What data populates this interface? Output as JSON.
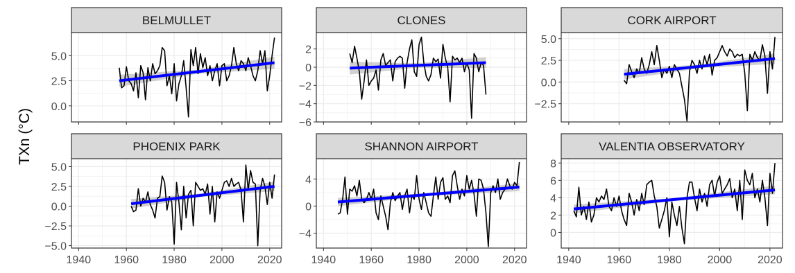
{
  "chart_data": {
    "type": "line",
    "ylabel": "TXn (°C)",
    "xlabel": "",
    "x_ticks": [
      1940,
      1960,
      1980,
      2000,
      2020
    ],
    "xlim": [
      1937,
      2025
    ],
    "grid": true,
    "legend": "none",
    "colors": {
      "series": "#000000",
      "trend": "#0000ff",
      "band": "#b3b3b3",
      "strip": "#d9d9d9",
      "grid": "#ebebeb",
      "panel_border": "#333333"
    },
    "panels": [
      {
        "title": "BELMULLET",
        "ylim": [
          -1.6,
          7.3
        ],
        "y_ticks": [
          0.0,
          2.5,
          5.0
        ],
        "y_tick_labels": [
          "0.0",
          "2.5",
          "5.0"
        ],
        "trend": {
          "x": [
            1957,
            2022
          ],
          "y": [
            2.5,
            4.3
          ]
        },
        "band": [
          0.6,
          0.6
        ],
        "x": [
          1957,
          1958,
          1959,
          1960,
          1961,
          1962,
          1963,
          1964,
          1965,
          1966,
          1967,
          1968,
          1969,
          1970,
          1971,
          1972,
          1973,
          1974,
          1975,
          1976,
          1977,
          1978,
          1979,
          1980,
          1981,
          1982,
          1983,
          1984,
          1985,
          1986,
          1987,
          1988,
          1989,
          1990,
          1991,
          1992,
          1993,
          1994,
          1995,
          1996,
          1997,
          1998,
          1999,
          2000,
          2001,
          2002,
          2003,
          2004,
          2005,
          2006,
          2007,
          2008,
          2009,
          2010,
          2011,
          2012,
          2013,
          2014,
          2015,
          2016,
          2017,
          2018,
          2019,
          2020,
          2021,
          2022
        ],
        "y": [
          3.8,
          1.8,
          2.0,
          3.9,
          2.5,
          2.2,
          1.5,
          3.3,
          0.8,
          4.0,
          3.3,
          0.6,
          3.8,
          2.5,
          4.2,
          3.2,
          3.5,
          4.0,
          5.8,
          5.5,
          2.0,
          3.0,
          1.2,
          4.2,
          0.5,
          2.2,
          3.0,
          4.5,
          1.8,
          -1.1,
          5.6,
          4.0,
          5.8,
          3.2,
          5.2,
          3.8,
          4.8,
          3.0,
          4.0,
          2.5,
          3.5,
          4.2,
          2.0,
          4.0,
          4.2,
          2.5,
          3.0,
          4.0,
          5.8,
          4.2,
          3.5,
          4.5,
          4.2,
          3.5,
          4.8,
          4.0,
          3.0,
          2.5,
          3.5,
          5.5,
          4.2,
          5.5,
          1.5,
          3.0,
          5.0,
          6.8
        ]
      },
      {
        "title": "CLONES",
        "ylim": [
          -6,
          3.8
        ],
        "y_ticks": [
          -6,
          -4,
          -2,
          0,
          2
        ],
        "y_tick_labels": [
          "−6",
          "−4",
          "−2",
          "0",
          "2"
        ],
        "trend": {
          "x": [
            1951,
            2008
          ],
          "y": [
            -0.1,
            0.5
          ]
        },
        "band": [
          0.7,
          0.6
        ],
        "x": [
          1951,
          1952,
          1953,
          1954,
          1955,
          1956,
          1957,
          1958,
          1959,
          1960,
          1961,
          1962,
          1963,
          1964,
          1965,
          1966,
          1967,
          1968,
          1969,
          1970,
          1971,
          1972,
          1973,
          1974,
          1975,
          1976,
          1977,
          1978,
          1979,
          1980,
          1981,
          1982,
          1983,
          1984,
          1985,
          1986,
          1987,
          1988,
          1989,
          1990,
          1991,
          1992,
          1993,
          1994,
          1995,
          1996,
          1997,
          1998,
          1999,
          2000,
          2001,
          2002,
          2003,
          2004,
          2005,
          2006,
          2007,
          2008
        ],
        "y": [
          1.5,
          0.5,
          2.3,
          1.0,
          -0.5,
          -3.5,
          -1.5,
          0.8,
          -2.0,
          -1.5,
          -1.2,
          -0.3,
          -2.5,
          0.8,
          1.5,
          0.2,
          0.5,
          0.8,
          -1.5,
          0.6,
          1.0,
          1.2,
          1.0,
          -2.3,
          0.5,
          2.0,
          3.0,
          -0.5,
          -1.0,
          2.5,
          3.3,
          0.5,
          -1.0,
          -1.5,
          -0.8,
          1.0,
          0.6,
          0.9,
          -1.2,
          2.5,
          1.0,
          0.0,
          -3.8,
          1.2,
          0.8,
          1.0,
          0.5,
          1.0,
          -0.5,
          0.5,
          -0.3,
          -5.6,
          1.5,
          1.0,
          -0.5,
          0.5,
          0.2,
          -3.0
        ]
      },
      {
        "title": "CORK AIRPORT",
        "ylim": [
          -4.6,
          5.7
        ],
        "y_ticks": [
          -2.5,
          0.0,
          2.5,
          5.0
        ],
        "y_tick_labels": [
          "−2.5",
          "0.0",
          "2.5",
          "5.0"
        ],
        "trend": {
          "x": [
            1962,
            2022
          ],
          "y": [
            0.9,
            2.7
          ]
        },
        "band": [
          0.6,
          0.6
        ],
        "x": [
          1962,
          1963,
          1964,
          1965,
          1966,
          1967,
          1968,
          1969,
          1970,
          1971,
          1972,
          1973,
          1974,
          1975,
          1976,
          1977,
          1978,
          1979,
          1980,
          1981,
          1982,
          1983,
          1984,
          1985,
          1986,
          1987,
          1988,
          1989,
          1990,
          1991,
          1992,
          1993,
          1994,
          1995,
          1996,
          1997,
          1998,
          1999,
          2000,
          2001,
          2002,
          2003,
          2004,
          2005,
          2006,
          2007,
          2008,
          2009,
          2010,
          2011,
          2012,
          2013,
          2014,
          2015,
          2016,
          2017,
          2018,
          2019,
          2020,
          2021,
          2022
        ],
        "y": [
          0.2,
          -0.2,
          2.0,
          1.2,
          0.5,
          1.5,
          1.0,
          2.8,
          1.5,
          1.0,
          2.0,
          3.5,
          2.0,
          4.2,
          2.5,
          0.5,
          1.5,
          1.0,
          1.8,
          0.5,
          2.0,
          1.5,
          1.0,
          -0.5,
          -2.0,
          -4.5,
          1.2,
          2.5,
          2.0,
          1.0,
          2.5,
          1.5,
          3.0,
          2.0,
          3.2,
          0.8,
          2.5,
          2.8,
          3.5,
          4.2,
          3.5,
          3.0,
          3.8,
          3.5,
          2.8,
          3.2,
          3.0,
          3.2,
          1.0,
          -3.3,
          3.2,
          2.5,
          3.5,
          2.8,
          2.5,
          4.3,
          3.0,
          -1.3,
          3.5,
          1.5,
          5.2
        ]
      },
      {
        "title": "PHOENIX PARK",
        "ylim": [
          -5.3,
          6.0
        ],
        "y_ticks": [
          -5.0,
          -2.5,
          0.0,
          2.5,
          5.0
        ],
        "y_tick_labels": [
          "−5.0",
          "−2.5",
          "0.0",
          "2.5",
          "5.0"
        ],
        "trend": {
          "x": [
            1962,
            2022
          ],
          "y": [
            0.3,
            2.5
          ]
        },
        "band": [
          0.6,
          0.6
        ],
        "x": [
          1962,
          1963,
          1964,
          1965,
          1966,
          1967,
          1968,
          1969,
          1970,
          1971,
          1972,
          1973,
          1974,
          1975,
          1976,
          1977,
          1978,
          1979,
          1980,
          1981,
          1982,
          1983,
          1984,
          1985,
          1986,
          1987,
          1988,
          1989,
          1990,
          1991,
          1992,
          1993,
          1994,
          1995,
          1996,
          1997,
          1998,
          1999,
          2000,
          2001,
          2002,
          2003,
          2004,
          2005,
          2006,
          2007,
          2008,
          2009,
          2010,
          2011,
          2012,
          2013,
          2014,
          2015,
          2016,
          2017,
          2018,
          2019,
          2020,
          2021,
          2022
        ],
        "y": [
          0.0,
          -0.7,
          -0.5,
          2.2,
          0.0,
          1.0,
          0.5,
          1.8,
          0.2,
          -0.5,
          -1.5,
          1.0,
          1.2,
          3.8,
          3.0,
          -0.5,
          1.2,
          0.5,
          -4.8,
          3.0,
          0.5,
          -3.0,
          2.5,
          -1.5,
          1.5,
          2.0,
          -2.5,
          3.0,
          2.5,
          2.0,
          2.2,
          1.5,
          2.8,
          -1.0,
          2.5,
          -2.0,
          1.8,
          1.0,
          2.0,
          3.0,
          3.2,
          2.5,
          3.5,
          2.5,
          2.8,
          3.0,
          2.0,
          -2.0,
          5.2,
          2.0,
          4.5,
          3.0,
          2.8,
          -5.0,
          2.0,
          3.5,
          2.5,
          0.2,
          3.0,
          1.0,
          4.0
        ]
      },
      {
        "title": "SHANNON AIRPORT",
        "ylim": [
          -6.2,
          7.0
        ],
        "y_ticks": [
          -4,
          0,
          4
        ],
        "y_tick_labels": [
          "−4",
          "0",
          "4"
        ],
        "trend": {
          "x": [
            1946,
            2022
          ],
          "y": [
            0.6,
            2.8
          ]
        },
        "band": [
          0.6,
          0.6
        ],
        "x": [
          1946,
          1947,
          1948,
          1949,
          1950,
          1951,
          1952,
          1953,
          1954,
          1955,
          1956,
          1957,
          1958,
          1959,
          1960,
          1961,
          1962,
          1963,
          1964,
          1965,
          1966,
          1967,
          1968,
          1969,
          1970,
          1971,
          1972,
          1973,
          1974,
          1975,
          1976,
          1977,
          1978,
          1979,
          1980,
          1981,
          1982,
          1983,
          1984,
          1985,
          1986,
          1987,
          1988,
          1989,
          1990,
          1991,
          1992,
          1993,
          1994,
          1995,
          1996,
          1997,
          1998,
          1999,
          2000,
          2001,
          2002,
          2003,
          2004,
          2005,
          2006,
          2007,
          2008,
          2009,
          2010,
          2011,
          2012,
          2013,
          2014,
          2015,
          2016,
          2017,
          2018,
          2019,
          2020,
          2021,
          2022
        ],
        "y": [
          -1.2,
          -1.0,
          1.0,
          4.3,
          -1.2,
          2.5,
          2.2,
          3.0,
          1.5,
          3.8,
          1.0,
          0.5,
          1.0,
          2.0,
          1.0,
          2.5,
          -1.0,
          -2.0,
          1.5,
          0.0,
          -1.5,
          -3.5,
          0.5,
          2.0,
          0.8,
          1.5,
          2.0,
          -0.5,
          1.5,
          2.5,
          -1.0,
          1.5,
          1.0,
          4.5,
          1.0,
          -0.5,
          2.0,
          0.5,
          -1.0,
          -1.5,
          1.5,
          4.3,
          1.0,
          3.5,
          4.2,
          1.0,
          1.5,
          0.5,
          4.5,
          5.2,
          3.0,
          1.0,
          2.5,
          1.5,
          4.5,
          2.5,
          3.8,
          1.8,
          -1.5,
          4.0,
          3.8,
          2.5,
          -1.0,
          -6.0,
          2.0,
          3.0,
          2.0,
          4.0,
          1.0,
          2.0,
          2.5,
          4.0,
          3.0,
          2.5,
          3.5,
          3.0,
          6.5
        ]
      },
      {
        "title": "VALENTIA OBSERVATORY",
        "ylim": [
          -1.8,
          8.5
        ],
        "y_ticks": [
          0,
          2,
          4,
          6,
          8
        ],
        "y_tick_labels": [
          "0",
          "2",
          "4",
          "6",
          "8"
        ],
        "trend": {
          "x": [
            1942,
            2022
          ],
          "y": [
            2.7,
            4.9
          ]
        },
        "band": [
          0.5,
          0.5
        ],
        "x": [
          1942,
          1943,
          1944,
          1945,
          1946,
          1947,
          1948,
          1949,
          1950,
          1951,
          1952,
          1953,
          1954,
          1955,
          1956,
          1957,
          1958,
          1959,
          1960,
          1961,
          1962,
          1963,
          1964,
          1965,
          1966,
          1967,
          1968,
          1969,
          1970,
          1971,
          1972,
          1973,
          1974,
          1975,
          1976,
          1977,
          1978,
          1979,
          1980,
          1981,
          1982,
          1983,
          1984,
          1985,
          1986,
          1987,
          1988,
          1989,
          1990,
          1991,
          1992,
          1993,
          1994,
          1995,
          1996,
          1997,
          1998,
          1999,
          2000,
          2001,
          2002,
          2003,
          2004,
          2005,
          2006,
          2007,
          2008,
          2009,
          2010,
          2011,
          2012,
          2013,
          2014,
          2015,
          2016,
          2017,
          2018,
          2019,
          2020,
          2021,
          2022
        ],
        "y": [
          2.5,
          1.8,
          5.2,
          2.0,
          3.0,
          1.5,
          3.5,
          1.2,
          2.0,
          4.0,
          3.5,
          4.2,
          3.8,
          5.0,
          3.0,
          2.5,
          4.0,
          3.0,
          4.2,
          2.5,
          1.5,
          0.8,
          4.5,
          3.5,
          2.0,
          3.8,
          2.5,
          4.5,
          3.2,
          5.5,
          5.8,
          6.0,
          4.2,
          3.0,
          0.5,
          1.5,
          2.5,
          4.0,
          -0.5,
          3.5,
          2.0,
          0.8,
          3.0,
          0.5,
          -1.3,
          4.0,
          5.8,
          5.8,
          4.0,
          2.5,
          5.0,
          3.5,
          4.5,
          3.0,
          5.5,
          6.0,
          4.2,
          5.8,
          6.5,
          4.5,
          5.0,
          5.5,
          6.2,
          4.0,
          5.0,
          2.5,
          6.0,
          1.5,
          7.2,
          6.0,
          5.5,
          6.8,
          4.0,
          5.0,
          3.5,
          6.0,
          4.0,
          0.8,
          6.8,
          4.5,
          8.0
        ]
      }
    ]
  }
}
